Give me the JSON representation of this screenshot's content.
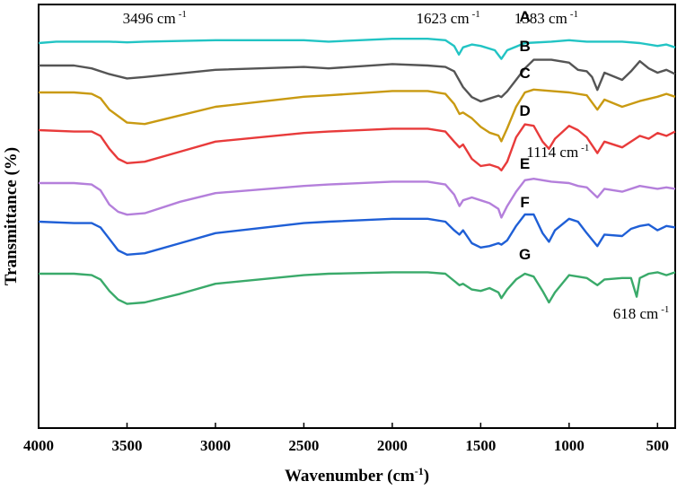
{
  "chart_data": {
    "type": "line",
    "title": "",
    "xlabel": "Wavenumber (cm-1)",
    "xlabel_main": "Wavenumber (cm",
    "xlabel_sup": "-1",
    "xlabel_end": ")",
    "ylabel": "Transmittance (%)",
    "xlim": [
      4000,
      400
    ],
    "x_reversed": true,
    "xticks": [
      4000,
      3500,
      3000,
      2500,
      2000,
      1500,
      1000,
      500
    ],
    "yticks_shown": false,
    "y_units": "arbitrary transmittance (stacked, offset series)",
    "grid": false,
    "legend": "none",
    "series": [
      {
        "name": "A",
        "color": "#22c4c4",
        "baseline": 100,
        "points": [
          [
            4000,
            95
          ],
          [
            3900,
            96
          ],
          [
            3800,
            96
          ],
          [
            3700,
            96
          ],
          [
            3600,
            96
          ],
          [
            3500,
            95.5
          ],
          [
            3400,
            96
          ],
          [
            3000,
            97
          ],
          [
            2500,
            97
          ],
          [
            2360,
            96
          ],
          [
            2000,
            98
          ],
          [
            1800,
            98
          ],
          [
            1700,
            97
          ],
          [
            1650,
            93
          ],
          [
            1623,
            87
          ],
          [
            1600,
            92
          ],
          [
            1550,
            94
          ],
          [
            1500,
            93
          ],
          [
            1420,
            90
          ],
          [
            1383,
            84
          ],
          [
            1350,
            90
          ],
          [
            1250,
            95
          ],
          [
            1100,
            96
          ],
          [
            1000,
            97
          ],
          [
            900,
            96
          ],
          [
            800,
            96
          ],
          [
            700,
            96
          ],
          [
            600,
            95
          ],
          [
            500,
            93
          ],
          [
            450,
            94
          ],
          [
            400,
            92
          ]
        ]
      },
      {
        "name": "B",
        "color": "#555555",
        "baseline": 100,
        "points": [
          [
            4000,
            100
          ],
          [
            3800,
            100
          ],
          [
            3700,
            98
          ],
          [
            3600,
            94
          ],
          [
            3500,
            91
          ],
          [
            3400,
            92
          ],
          [
            3000,
            97
          ],
          [
            2500,
            99
          ],
          [
            2360,
            98
          ],
          [
            2000,
            101
          ],
          [
            1800,
            100
          ],
          [
            1700,
            99
          ],
          [
            1650,
            96
          ],
          [
            1600,
            85
          ],
          [
            1550,
            78
          ],
          [
            1500,
            75
          ],
          [
            1450,
            77
          ],
          [
            1400,
            79
          ],
          [
            1383,
            78
          ],
          [
            1350,
            82
          ],
          [
            1300,
            90
          ],
          [
            1250,
            98
          ],
          [
            1200,
            104
          ],
          [
            1100,
            104
          ],
          [
            1000,
            102
          ],
          [
            950,
            97
          ],
          [
            900,
            96
          ],
          [
            870,
            92
          ],
          [
            840,
            83
          ],
          [
            800,
            95
          ],
          [
            700,
            90
          ],
          [
            650,
            96
          ],
          [
            600,
            103
          ],
          [
            550,
            98
          ],
          [
            500,
            95
          ],
          [
            450,
            97
          ],
          [
            400,
            94
          ]
        ]
      },
      {
        "name": "C",
        "color": "#c99a12",
        "baseline": 100,
        "points": [
          [
            4000,
            100
          ],
          [
            3800,
            100
          ],
          [
            3700,
            99
          ],
          [
            3650,
            96
          ],
          [
            3600,
            88
          ],
          [
            3500,
            79
          ],
          [
            3400,
            78
          ],
          [
            3200,
            84
          ],
          [
            3000,
            90
          ],
          [
            2500,
            97
          ],
          [
            2360,
            98
          ],
          [
            2000,
            101
          ],
          [
            1800,
            101
          ],
          [
            1700,
            99
          ],
          [
            1650,
            92
          ],
          [
            1620,
            85
          ],
          [
            1600,
            86
          ],
          [
            1550,
            82
          ],
          [
            1500,
            76
          ],
          [
            1450,
            72
          ],
          [
            1400,
            70
          ],
          [
            1383,
            66
          ],
          [
            1350,
            75
          ],
          [
            1300,
            90
          ],
          [
            1250,
            100
          ],
          [
            1200,
            102
          ],
          [
            1100,
            101
          ],
          [
            1000,
            100
          ],
          [
            900,
            98
          ],
          [
            840,
            88
          ],
          [
            800,
            95
          ],
          [
            700,
            90
          ],
          [
            600,
            94
          ],
          [
            500,
            97
          ],
          [
            450,
            99
          ],
          [
            400,
            97
          ]
        ]
      },
      {
        "name": "D",
        "color": "#e83b3b",
        "baseline": 100,
        "points": [
          [
            4000,
            100
          ],
          [
            3800,
            99
          ],
          [
            3700,
            99
          ],
          [
            3650,
            96
          ],
          [
            3600,
            87
          ],
          [
            3550,
            80
          ],
          [
            3500,
            77
          ],
          [
            3400,
            78
          ],
          [
            3200,
            85
          ],
          [
            3000,
            92
          ],
          [
            2500,
            98
          ],
          [
            2360,
            99
          ],
          [
            2000,
            101
          ],
          [
            1800,
            101
          ],
          [
            1700,
            99
          ],
          [
            1650,
            92
          ],
          [
            1620,
            88
          ],
          [
            1600,
            90
          ],
          [
            1550,
            80
          ],
          [
            1500,
            75
          ],
          [
            1450,
            76
          ],
          [
            1400,
            74
          ],
          [
            1383,
            72
          ],
          [
            1350,
            78
          ],
          [
            1300,
            95
          ],
          [
            1250,
            104
          ],
          [
            1200,
            103
          ],
          [
            1150,
            92
          ],
          [
            1114,
            87
          ],
          [
            1080,
            94
          ],
          [
            1000,
            103
          ],
          [
            950,
            100
          ],
          [
            900,
            95
          ],
          [
            840,
            84
          ],
          [
            800,
            92
          ],
          [
            700,
            88
          ],
          [
            600,
            96
          ],
          [
            550,
            94
          ],
          [
            500,
            98
          ],
          [
            450,
            96
          ],
          [
            400,
            99
          ]
        ]
      },
      {
        "name": "E",
        "color": "#b47fdb",
        "baseline": 100,
        "points": [
          [
            4000,
            100
          ],
          [
            3800,
            100
          ],
          [
            3700,
            99
          ],
          [
            3650,
            95
          ],
          [
            3600,
            85
          ],
          [
            3550,
            80
          ],
          [
            3500,
            78
          ],
          [
            3400,
            79
          ],
          [
            3200,
            87
          ],
          [
            3000,
            93
          ],
          [
            2500,
            98
          ],
          [
            2360,
            99
          ],
          [
            2000,
            101
          ],
          [
            1800,
            101
          ],
          [
            1700,
            99
          ],
          [
            1650,
            92
          ],
          [
            1620,
            84
          ],
          [
            1600,
            88
          ],
          [
            1550,
            90
          ],
          [
            1500,
            88
          ],
          [
            1450,
            86
          ],
          [
            1400,
            82
          ],
          [
            1383,
            76
          ],
          [
            1350,
            84
          ],
          [
            1300,
            94
          ],
          [
            1250,
            102
          ],
          [
            1200,
            103
          ],
          [
            1100,
            101
          ],
          [
            1000,
            100
          ],
          [
            950,
            98
          ],
          [
            900,
            97
          ],
          [
            840,
            90
          ],
          [
            800,
            96
          ],
          [
            700,
            94
          ],
          [
            600,
            98
          ],
          [
            500,
            96
          ],
          [
            450,
            97
          ],
          [
            400,
            96
          ]
        ]
      },
      {
        "name": "F",
        "color": "#1f5fd6",
        "baseline": 100,
        "points": [
          [
            4000,
            100
          ],
          [
            3800,
            99
          ],
          [
            3700,
            99
          ],
          [
            3650,
            96
          ],
          [
            3600,
            88
          ],
          [
            3550,
            80
          ],
          [
            3500,
            77
          ],
          [
            3400,
            78
          ],
          [
            3200,
            85
          ],
          [
            3000,
            92
          ],
          [
            2500,
            99
          ],
          [
            2360,
            100
          ],
          [
            2000,
            102
          ],
          [
            1800,
            102
          ],
          [
            1700,
            100
          ],
          [
            1650,
            94
          ],
          [
            1620,
            91
          ],
          [
            1600,
            94
          ],
          [
            1550,
            85
          ],
          [
            1500,
            82
          ],
          [
            1450,
            83
          ],
          [
            1400,
            85
          ],
          [
            1383,
            84
          ],
          [
            1350,
            87
          ],
          [
            1300,
            97
          ],
          [
            1250,
            105
          ],
          [
            1200,
            105
          ],
          [
            1150,
            92
          ],
          [
            1114,
            86
          ],
          [
            1080,
            94
          ],
          [
            1000,
            102
          ],
          [
            950,
            100
          ],
          [
            900,
            92
          ],
          [
            840,
            83
          ],
          [
            800,
            91
          ],
          [
            700,
            90
          ],
          [
            650,
            95
          ],
          [
            600,
            97
          ],
          [
            550,
            98
          ],
          [
            500,
            94
          ],
          [
            450,
            97
          ],
          [
            400,
            96
          ]
        ]
      },
      {
        "name": "G",
        "color": "#3aaa6a",
        "baseline": 100,
        "points": [
          [
            4000,
            100
          ],
          [
            3800,
            100
          ],
          [
            3700,
            99
          ],
          [
            3650,
            96
          ],
          [
            3600,
            88
          ],
          [
            3550,
            82
          ],
          [
            3500,
            79
          ],
          [
            3400,
            80
          ],
          [
            3200,
            86
          ],
          [
            3000,
            93
          ],
          [
            2500,
            99
          ],
          [
            2360,
            100
          ],
          [
            2000,
            101
          ],
          [
            1800,
            101
          ],
          [
            1700,
            100
          ],
          [
            1650,
            95
          ],
          [
            1620,
            92
          ],
          [
            1600,
            93
          ],
          [
            1550,
            89
          ],
          [
            1500,
            88
          ],
          [
            1450,
            90
          ],
          [
            1400,
            87
          ],
          [
            1383,
            83
          ],
          [
            1350,
            89
          ],
          [
            1300,
            96
          ],
          [
            1250,
            100
          ],
          [
            1200,
            98
          ],
          [
            1150,
            88
          ],
          [
            1114,
            80
          ],
          [
            1080,
            87
          ],
          [
            1000,
            99
          ],
          [
            950,
            98
          ],
          [
            900,
            97
          ],
          [
            840,
            92
          ],
          [
            800,
            96
          ],
          [
            700,
            97
          ],
          [
            650,
            97
          ],
          [
            618,
            84
          ],
          [
            600,
            97
          ],
          [
            550,
            100
          ],
          [
            500,
            101
          ],
          [
            450,
            99
          ],
          [
            400,
            101
          ]
        ]
      }
    ],
    "series_label_positions": [
      1250,
      1250,
      1250,
      1250,
      1250,
      1250,
      1250
    ],
    "annotations": [
      {
        "text": "3496 cm",
        "sup": "-1",
        "x": 3496,
        "series": "A"
      },
      {
        "text": "1623 cm",
        "sup": "-1",
        "x": 1623,
        "series": "A"
      },
      {
        "text": "1383 cm",
        "sup": "-1",
        "x": 1383,
        "series": "A"
      },
      {
        "text": "1114 cm",
        "sup": "-1",
        "x": 1114,
        "series": "D"
      },
      {
        "text": "618 cm",
        "sup": "-1",
        "x": 618,
        "series": "G"
      }
    ]
  }
}
